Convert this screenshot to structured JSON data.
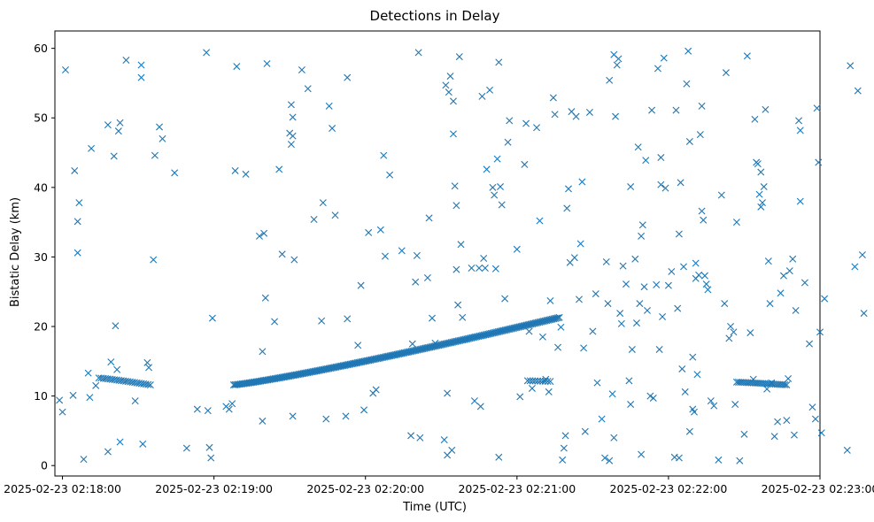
{
  "chart_data": {
    "type": "scatter",
    "title": "Detections in Delay",
    "xlabel": "Time (UTC)",
    "ylabel": "Bistatic Delay (km)",
    "xlim": [
      -0.05,
      5.0
    ],
    "ylim": [
      -1.5,
      62.5
    ],
    "x_unit": "minutes after 2025-02-23 02:18:00",
    "x_ticks": [
      {
        "value": 0,
        "label": "2025-02-23 02:18:00"
      },
      {
        "value": 1,
        "label": "2025-02-23 02:19:00"
      },
      {
        "value": 2,
        "label": "2025-02-23 02:20:00"
      },
      {
        "value": 3,
        "label": "2025-02-23 02:21:00"
      },
      {
        "value": 4,
        "label": "2025-02-23 02:22:00"
      },
      {
        "value": 5,
        "label": "2025-02-23 02:23:00"
      }
    ],
    "y_ticks": [
      0,
      10,
      20,
      30,
      40,
      50,
      60
    ],
    "marker": "x",
    "color": "#1f77b4",
    "series": [
      {
        "name": "Detections",
        "tracks": [
          {
            "x_start": 0.24,
            "x_end": 0.58,
            "y_start": 12.6,
            "y_end": 11.6,
            "count": 24
          },
          {
            "x_start": 1.13,
            "x_end": 3.28,
            "y_start": 11.6,
            "y_end": 21.3,
            "count": 230
          },
          {
            "x_start": 3.07,
            "x_end": 3.22,
            "y_start": 12.2,
            "y_end": 12.1,
            "count": 10
          },
          {
            "x_start": 4.45,
            "x_end": 4.78,
            "y_start": 12.0,
            "y_end": 11.6,
            "count": 28
          }
        ],
        "points": [
          [
            -0.02,
            9.4
          ],
          [
            0.0,
            7.7
          ],
          [
            0.02,
            56.9
          ],
          [
            0.07,
            10.1
          ],
          [
            0.08,
            42.4
          ],
          [
            0.1,
            35.1
          ],
          [
            0.1,
            30.6
          ],
          [
            0.11,
            37.8
          ],
          [
            0.14,
            0.9
          ],
          [
            0.17,
            13.3
          ],
          [
            0.18,
            9.8
          ],
          [
            0.19,
            45.6
          ],
          [
            0.22,
            11.5
          ],
          [
            0.3,
            49.0
          ],
          [
            0.3,
            2.0
          ],
          [
            0.32,
            14.9
          ],
          [
            0.34,
            44.5
          ],
          [
            0.35,
            20.1
          ],
          [
            0.36,
            13.8
          ],
          [
            0.37,
            48.1
          ],
          [
            0.38,
            49.3
          ],
          [
            0.38,
            3.4
          ],
          [
            0.42,
            58.3
          ],
          [
            0.48,
            9.3
          ],
          [
            0.52,
            57.6
          ],
          [
            0.52,
            55.8
          ],
          [
            0.53,
            3.1
          ],
          [
            0.56,
            14.8
          ],
          [
            0.57,
            14.1
          ],
          [
            0.6,
            29.6
          ],
          [
            0.61,
            44.6
          ],
          [
            0.64,
            48.7
          ],
          [
            0.66,
            47.0
          ],
          [
            0.74,
            42.1
          ],
          [
            0.82,
            2.5
          ],
          [
            0.89,
            8.1
          ],
          [
            0.95,
            59.4
          ],
          [
            0.96,
            7.9
          ],
          [
            0.97,
            2.6
          ],
          [
            0.98,
            1.1
          ],
          [
            0.99,
            21.2
          ],
          [
            1.08,
            8.5
          ],
          [
            1.1,
            8.1
          ],
          [
            1.12,
            8.9
          ],
          [
            1.14,
            42.4
          ],
          [
            1.15,
            57.4
          ],
          [
            1.21,
            41.9
          ],
          [
            1.3,
            33.0
          ],
          [
            1.32,
            6.4
          ],
          [
            1.32,
            16.4
          ],
          [
            1.33,
            33.4
          ],
          [
            1.34,
            24.1
          ],
          [
            1.35,
            57.8
          ],
          [
            1.4,
            20.7
          ],
          [
            1.43,
            42.6
          ],
          [
            1.45,
            30.4
          ],
          [
            1.5,
            47.8
          ],
          [
            1.51,
            51.9
          ],
          [
            1.51,
            46.2
          ],
          [
            1.52,
            50.1
          ],
          [
            1.52,
            47.4
          ],
          [
            1.53,
            29.6
          ],
          [
            1.52,
            7.1
          ],
          [
            1.58,
            56.9
          ],
          [
            1.62,
            54.2
          ],
          [
            1.66,
            35.4
          ],
          [
            1.71,
            20.8
          ],
          [
            1.72,
            37.8
          ],
          [
            1.74,
            6.7
          ],
          [
            1.76,
            51.7
          ],
          [
            1.8,
            36.0
          ],
          [
            1.78,
            48.5
          ],
          [
            1.88,
            55.8
          ],
          [
            1.87,
            7.1
          ],
          [
            1.88,
            21.1
          ],
          [
            1.95,
            17.3
          ],
          [
            1.97,
            25.9
          ],
          [
            1.99,
            8.0
          ],
          [
            2.02,
            33.5
          ],
          [
            2.05,
            10.4
          ],
          [
            2.07,
            10.9
          ],
          [
            2.1,
            33.9
          ],
          [
            2.12,
            44.6
          ],
          [
            2.13,
            30.1
          ],
          [
            2.16,
            41.8
          ],
          [
            2.24,
            30.9
          ],
          [
            2.3,
            4.3
          ],
          [
            2.31,
            17.5
          ],
          [
            2.33,
            26.4
          ],
          [
            2.34,
            30.2
          ],
          [
            2.35,
            59.4
          ],
          [
            2.36,
            4.0
          ],
          [
            2.41,
            27.0
          ],
          [
            2.42,
            35.6
          ],
          [
            2.44,
            21.2
          ],
          [
            2.46,
            17.6
          ],
          [
            2.52,
            3.7
          ],
          [
            2.53,
            54.7
          ],
          [
            2.54,
            1.5
          ],
          [
            2.54,
            10.4
          ],
          [
            2.55,
            53.7
          ],
          [
            2.56,
            56.0
          ],
          [
            2.57,
            2.2
          ],
          [
            2.58,
            52.4
          ],
          [
            2.58,
            47.7
          ],
          [
            2.59,
            40.2
          ],
          [
            2.6,
            37.4
          ],
          [
            2.6,
            28.2
          ],
          [
            2.61,
            23.1
          ],
          [
            2.62,
            58.8
          ],
          [
            2.63,
            31.8
          ],
          [
            2.64,
            21.3
          ],
          [
            2.7,
            28.4
          ],
          [
            2.72,
            9.3
          ],
          [
            2.75,
            28.4
          ],
          [
            2.76,
            8.5
          ],
          [
            2.77,
            53.1
          ],
          [
            2.78,
            29.8
          ],
          [
            2.79,
            28.4
          ],
          [
            2.8,
            42.6
          ],
          [
            2.82,
            54.0
          ],
          [
            2.84,
            40.0
          ],
          [
            2.85,
            38.9
          ],
          [
            2.86,
            28.3
          ],
          [
            2.87,
            44.1
          ],
          [
            2.88,
            58.0
          ],
          [
            2.88,
            1.2
          ],
          [
            2.89,
            40.1
          ],
          [
            2.9,
            37.5
          ],
          [
            2.92,
            24.0
          ],
          [
            2.94,
            46.5
          ],
          [
            2.95,
            49.6
          ],
          [
            3.0,
            31.1
          ],
          [
            3.02,
            9.9
          ],
          [
            3.05,
            43.3
          ],
          [
            3.06,
            49.2
          ],
          [
            3.08,
            19.3
          ],
          [
            3.1,
            11.1
          ],
          [
            3.13,
            48.6
          ],
          [
            3.15,
            35.2
          ],
          [
            3.17,
            18.5
          ],
          [
            3.19,
            12.4
          ],
          [
            3.21,
            10.6
          ],
          [
            3.22,
            23.7
          ],
          [
            3.24,
            52.9
          ],
          [
            3.25,
            50.5
          ],
          [
            3.27,
            17.0
          ],
          [
            3.29,
            19.9
          ],
          [
            3.3,
            0.8
          ],
          [
            3.31,
            2.5
          ],
          [
            3.32,
            4.3
          ],
          [
            3.33,
            37.0
          ],
          [
            3.34,
            39.8
          ],
          [
            3.35,
            29.2
          ],
          [
            3.36,
            50.9
          ],
          [
            3.38,
            29.9
          ],
          [
            3.39,
            50.2
          ],
          [
            3.41,
            23.9
          ],
          [
            3.42,
            31.9
          ],
          [
            3.43,
            40.8
          ],
          [
            3.44,
            16.9
          ],
          [
            3.45,
            4.9
          ],
          [
            3.48,
            50.8
          ],
          [
            3.5,
            19.3
          ],
          [
            3.52,
            24.7
          ],
          [
            3.53,
            11.9
          ],
          [
            3.56,
            6.7
          ],
          [
            3.58,
            1.1
          ],
          [
            3.59,
            29.3
          ],
          [
            3.6,
            23.3
          ],
          [
            3.61,
            55.4
          ],
          [
            3.61,
            0.7
          ],
          [
            3.63,
            10.3
          ],
          [
            3.64,
            59.1
          ],
          [
            3.64,
            4.0
          ],
          [
            3.65,
            50.2
          ],
          [
            3.66,
            57.6
          ],
          [
            3.67,
            58.5
          ],
          [
            3.68,
            21.9
          ],
          [
            3.69,
            20.4
          ],
          [
            3.7,
            28.7
          ],
          [
            3.72,
            26.1
          ],
          [
            3.74,
            12.2
          ],
          [
            3.75,
            40.1
          ],
          [
            3.75,
            8.8
          ],
          [
            3.76,
            16.7
          ],
          [
            3.78,
            29.7
          ],
          [
            3.79,
            20.5
          ],
          [
            3.8,
            45.8
          ],
          [
            3.81,
            23.3
          ],
          [
            3.82,
            33.0
          ],
          [
            3.82,
            1.6
          ],
          [
            3.83,
            34.6
          ],
          [
            3.84,
            25.7
          ],
          [
            3.85,
            43.9
          ],
          [
            3.86,
            22.3
          ],
          [
            3.88,
            10.0
          ],
          [
            3.89,
            51.1
          ],
          [
            3.9,
            9.7
          ],
          [
            3.92,
            26.0
          ],
          [
            3.93,
            57.1
          ],
          [
            3.94,
            16.7
          ],
          [
            3.95,
            44.3
          ],
          [
            3.95,
            40.4
          ],
          [
            3.96,
            21.4
          ],
          [
            3.97,
            58.6
          ],
          [
            3.98,
            39.9
          ],
          [
            4.0,
            25.9
          ],
          [
            4.02,
            27.9
          ],
          [
            4.04,
            1.2
          ],
          [
            4.05,
            51.1
          ],
          [
            4.06,
            22.6
          ],
          [
            4.07,
            33.3
          ],
          [
            4.07,
            1.1
          ],
          [
            4.08,
            40.7
          ],
          [
            4.09,
            13.9
          ],
          [
            4.1,
            28.6
          ],
          [
            4.11,
            10.6
          ],
          [
            4.12,
            54.9
          ],
          [
            4.13,
            59.6
          ],
          [
            4.14,
            46.6
          ],
          [
            4.14,
            4.9
          ],
          [
            4.16,
            15.6
          ],
          [
            4.16,
            8.1
          ],
          [
            4.17,
            7.7
          ],
          [
            4.18,
            29.1
          ],
          [
            4.18,
            26.9
          ],
          [
            4.19,
            13.1
          ],
          [
            4.2,
            27.4
          ],
          [
            4.21,
            47.6
          ],
          [
            4.22,
            51.7
          ],
          [
            4.22,
            36.6
          ],
          [
            4.23,
            35.3
          ],
          [
            4.24,
            27.3
          ],
          [
            4.25,
            26.1
          ],
          [
            4.26,
            25.3
          ],
          [
            4.28,
            9.3
          ],
          [
            4.3,
            8.6
          ],
          [
            4.33,
            0.8
          ],
          [
            4.35,
            38.9
          ],
          [
            4.37,
            23.3
          ],
          [
            4.38,
            56.5
          ],
          [
            4.4,
            18.3
          ],
          [
            4.41,
            20.0
          ],
          [
            4.43,
            19.2
          ],
          [
            4.44,
            8.8
          ],
          [
            4.45,
            35.0
          ],
          [
            4.47,
            0.7
          ],
          [
            4.5,
            4.5
          ],
          [
            4.52,
            58.9
          ],
          [
            4.54,
            19.1
          ],
          [
            4.56,
            12.4
          ],
          [
            4.57,
            49.8
          ],
          [
            4.58,
            43.6
          ],
          [
            4.59,
            43.4
          ],
          [
            4.6,
            39.0
          ],
          [
            4.61,
            42.2
          ],
          [
            4.61,
            37.2
          ],
          [
            4.62,
            37.8
          ],
          [
            4.63,
            40.1
          ],
          [
            4.64,
            51.2
          ],
          [
            4.65,
            11.0
          ],
          [
            4.66,
            29.4
          ],
          [
            4.67,
            23.3
          ],
          [
            4.68,
            11.9
          ],
          [
            4.7,
            4.2
          ],
          [
            4.72,
            6.3
          ],
          [
            4.74,
            24.8
          ],
          [
            4.76,
            27.3
          ],
          [
            4.78,
            6.5
          ],
          [
            4.79,
            12.5
          ],
          [
            4.8,
            28.0
          ],
          [
            4.82,
            29.7
          ],
          [
            4.83,
            4.4
          ],
          [
            4.84,
            22.3
          ],
          [
            4.86,
            49.6
          ],
          [
            4.87,
            48.2
          ],
          [
            4.87,
            38.0
          ],
          [
            4.9,
            26.3
          ],
          [
            4.93,
            17.5
          ],
          [
            4.95,
            8.4
          ],
          [
            4.97,
            6.7
          ],
          [
            4.98,
            51.4
          ],
          [
            4.99,
            43.6
          ],
          [
            5.0,
            19.2
          ],
          [
            5.01,
            4.7
          ],
          [
            5.03,
            24.0
          ],
          [
            5.18,
            2.2
          ],
          [
            5.2,
            57.5
          ],
          [
            5.23,
            28.6
          ],
          [
            5.25,
            53.9
          ],
          [
            5.28,
            30.3
          ],
          [
            5.29,
            21.9
          ]
        ]
      }
    ]
  }
}
